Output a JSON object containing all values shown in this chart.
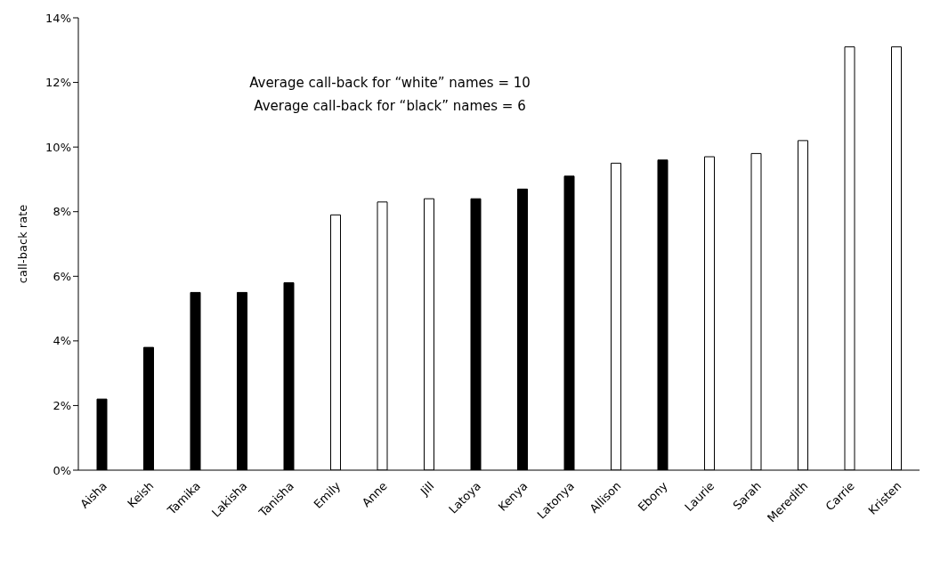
{
  "chart_data": {
    "type": "bar",
    "ylabel": "call-back rate",
    "categories": [
      "Aisha",
      "Keish",
      "Tamika",
      "Lakisha",
      "Tanisha",
      "Emily",
      "Anne",
      "Jill",
      "Latoya",
      "Kenya",
      "Latonya",
      "Allison",
      "Ebony",
      "Laurie",
      "Sarah",
      "Meredith",
      "Carrie",
      "Kristen"
    ],
    "values": [
      2.2,
      3.8,
      5.5,
      5.5,
      5.8,
      7.9,
      8.3,
      8.4,
      8.4,
      8.7,
      9.1,
      9.5,
      9.6,
      9.7,
      9.8,
      10.2,
      13.1,
      13.1
    ],
    "colors": [
      "#000000",
      "#000000",
      "#000000",
      "#000000",
      "#000000",
      "#ffffff",
      "#ffffff",
      "#ffffff",
      "#000000",
      "#000000",
      "#000000",
      "#ffffff",
      "#000000",
      "#ffffff",
      "#ffffff",
      "#ffffff",
      "#ffffff",
      "#ffffff"
    ],
    "ylim": [
      0,
      14
    ],
    "yticks": [
      {
        "value": 0,
        "label": "0%"
      },
      {
        "value": 2,
        "label": "2%"
      },
      {
        "value": 4,
        "label": "4%"
      },
      {
        "value": 6,
        "label": "6%"
      },
      {
        "value": 8,
        "label": "8%"
      },
      {
        "value": 10,
        "label": "10%"
      },
      {
        "value": 12,
        "label": "12%"
      },
      {
        "value": 14,
        "label": "14%"
      }
    ],
    "annotations": [
      "Average call-back for “white” names = 10",
      "Average call-back for “black” names = 6"
    ],
    "grid": false,
    "legend": false
  }
}
